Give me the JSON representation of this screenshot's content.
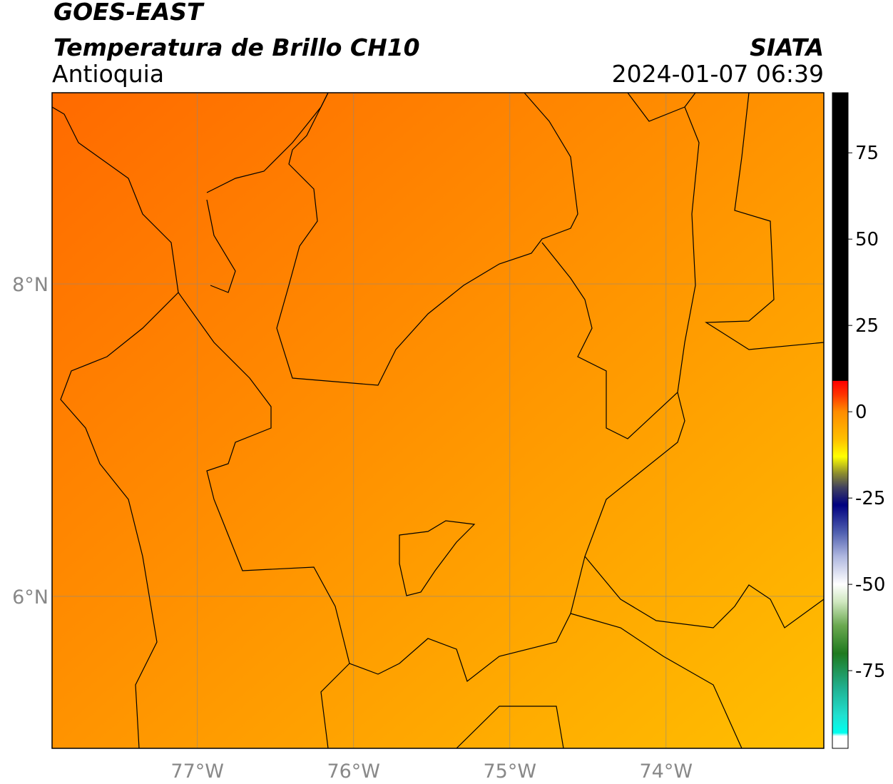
{
  "chart_data": {
    "type": "map",
    "title": "GOES-EAST",
    "subtitle": "Temperatura de Brillo CH10",
    "region": "Antioquia",
    "source": "SIATA",
    "datetime": "2024-01-07 06:39",
    "xlim": [
      -77.93,
      -72.99
    ],
    "ylim": [
      5.027,
      9.224
    ],
    "xticks": [
      {
        "value": -77,
        "label": "77°W"
      },
      {
        "value": -76,
        "label": "76°W"
      },
      {
        "value": -75,
        "label": "75°W"
      },
      {
        "value": -74,
        "label": "74°W"
      }
    ],
    "yticks": [
      {
        "value": 6,
        "label": "6°N"
      },
      {
        "value": 8,
        "label": "8°N"
      }
    ],
    "grid": true,
    "colorbar": {
      "lim": [
        -97.5,
        92.4
      ],
      "ticks": [
        75,
        50,
        25,
        0,
        -25,
        -50,
        -75
      ],
      "stops": [
        {
          "value": 92.4,
          "color": "#000000"
        },
        {
          "value": 9,
          "color": "#000000"
        },
        {
          "value": 8.9,
          "color": "#ff0000"
        },
        {
          "value": 5,
          "color": "#ff3300"
        },
        {
          "value": 0,
          "color": "#ff8c00"
        },
        {
          "value": -8,
          "color": "#ffc000"
        },
        {
          "value": -13,
          "color": "#ffff00"
        },
        {
          "value": -18,
          "color": "#8a8a30"
        },
        {
          "value": -22,
          "color": "#404060"
        },
        {
          "value": -27,
          "color": "#000080"
        },
        {
          "value": -35,
          "color": "#5060b0"
        },
        {
          "value": -42,
          "color": "#b0b8e0"
        },
        {
          "value": -50,
          "color": "#ffffff"
        },
        {
          "value": -55,
          "color": "#d0e8c0"
        },
        {
          "value": -62,
          "color": "#6aa84f"
        },
        {
          "value": -70,
          "color": "#1f7a1f"
        },
        {
          "value": -80,
          "color": "#20b090"
        },
        {
          "value": -88,
          "color": "#20e0d0"
        },
        {
          "value": -93,
          "color": "#00ffee"
        },
        {
          "value": -94,
          "color": "#ffffff"
        },
        {
          "value": -97.5,
          "color": "#ffffff"
        }
      ]
    }
  }
}
